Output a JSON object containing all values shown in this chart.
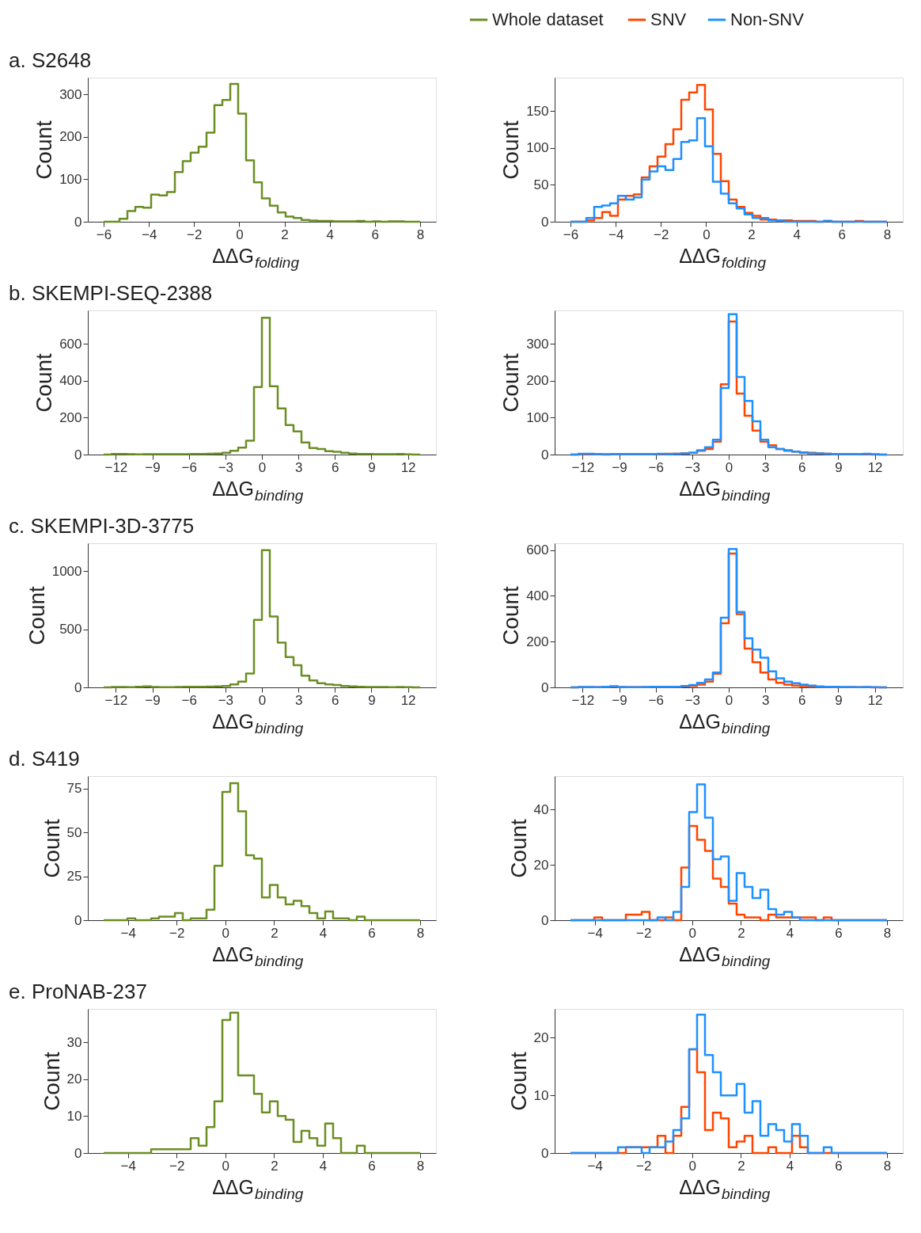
{
  "chart_data": [
    {
      "type": "histogram",
      "title": "a. S2648",
      "xlabel": "ΔΔG$_{folding}$",
      "ylabel": "Count",
      "xlim": [
        -6.7,
        8.7
      ],
      "xticks": [
        -6,
        -4,
        -2,
        0,
        2,
        4,
        6,
        8
      ],
      "ylim": [
        0,
        340
      ],
      "yticks": [
        0,
        100,
        200,
        300
      ],
      "bins": [
        -6,
        -5.65,
        -5.3,
        -4.95,
        -4.6,
        -4.25,
        -3.9,
        -3.55,
        -3.2,
        -2.85,
        -2.5,
        -2.15,
        -1.8,
        -1.45,
        -1.1,
        -0.75,
        -0.4,
        -0.05,
        0.3,
        0.65,
        1,
        1.35,
        1.7,
        2.05,
        2.4,
        2.75,
        3.1,
        3.45,
        3.8,
        4.15,
        4.5,
        4.85,
        5.2,
        5.55,
        5.9,
        6.25,
        6.6,
        6.95,
        7.3,
        7.65,
        8
      ],
      "series": [
        {
          "name": "Whole dataset",
          "color": "#6b8e23",
          "values": [
            0,
            0,
            7,
            25,
            35,
            33,
            64,
            62,
            70,
            117,
            143,
            163,
            177,
            210,
            275,
            287,
            325,
            255,
            145,
            93,
            55,
            38,
            22,
            12,
            9,
            4,
            3,
            2,
            2,
            1,
            1,
            1,
            2,
            0,
            1,
            0,
            1,
            1,
            0,
            0
          ]
        }
      ],
      "legend": "top right"
    },
    {
      "type": "histogram",
      "xlabel": "ΔΔG$_{folding}$",
      "ylabel": "Count",
      "xlim": [
        -6.7,
        8.7
      ],
      "xticks": [
        -6,
        -4,
        -2,
        0,
        2,
        4,
        6,
        8
      ],
      "ylim": [
        0,
        195
      ],
      "yticks": [
        0,
        50,
        100,
        150
      ],
      "bins": [
        -6,
        -5.65,
        -5.3,
        -4.95,
        -4.6,
        -4.25,
        -3.9,
        -3.55,
        -3.2,
        -2.85,
        -2.5,
        -2.15,
        -1.8,
        -1.45,
        -1.1,
        -0.75,
        -0.4,
        -0.05,
        0.3,
        0.65,
        1,
        1.35,
        1.7,
        2.05,
        2.4,
        2.75,
        3.1,
        3.45,
        3.8,
        4.15,
        4.5,
        4.85,
        5.2,
        5.55,
        5.9,
        6.25,
        6.6,
        6.95,
        7.3,
        7.65,
        8
      ],
      "series": [
        {
          "name": "SNV",
          "color": "#ff4500",
          "values": [
            0,
            0,
            2,
            5,
            13,
            8,
            30,
            35,
            37,
            60,
            75,
            88,
            105,
            125,
            165,
            175,
            185,
            152,
            92,
            55,
            30,
            20,
            12,
            8,
            3,
            3,
            2,
            2,
            1,
            1,
            1,
            0,
            1,
            0,
            0,
            0,
            1,
            0,
            0,
            0
          ]
        },
        {
          "name": "Non-SNV",
          "color": "#1e90ff",
          "values": [
            0,
            0,
            5,
            20,
            22,
            25,
            35,
            30,
            33,
            57,
            68,
            75,
            70,
            85,
            108,
            110,
            140,
            102,
            54,
            38,
            25,
            18,
            10,
            5,
            5,
            2,
            1,
            0,
            0,
            0,
            0,
            0,
            1,
            0,
            0,
            0,
            0,
            0,
            0,
            0
          ]
        }
      ],
      "legend": "top right"
    },
    {
      "type": "histogram",
      "title": "b. SKEMPI-SEQ-2388",
      "xlabel": "ΔΔG$_{binding}$",
      "ylabel": "Count",
      "xlim": [
        -14.3,
        14.3
      ],
      "xticks": [
        -12,
        -9,
        -6,
        -3,
        0,
        3,
        6,
        9,
        12
      ],
      "ylim": [
        0,
        780
      ],
      "yticks": [
        0,
        200,
        400,
        600
      ],
      "bins": [
        -13,
        -12.35,
        -11.7,
        -11.05,
        -10.4,
        -9.75,
        -9.1,
        -8.45,
        -7.8,
        -7.15,
        -6.5,
        -5.85,
        -5.2,
        -4.55,
        -3.9,
        -3.25,
        -2.6,
        -1.95,
        -1.3,
        -0.65,
        0,
        0.65,
        1.3,
        1.95,
        2.6,
        3.25,
        3.9,
        4.55,
        5.2,
        5.85,
        6.5,
        7.15,
        7.8,
        8.45,
        9.1,
        9.75,
        10.4,
        11.05,
        11.7,
        12.35,
        13
      ],
      "series": [
        {
          "color": "#6b8e23",
          "values": [
            0,
            3,
            3,
            2,
            1,
            2,
            2,
            2,
            2,
            2,
            2,
            3,
            3,
            4,
            5,
            10,
            20,
            38,
            75,
            365,
            740,
            370,
            250,
            160,
            125,
            65,
            35,
            30,
            18,
            15,
            10,
            5,
            3,
            3,
            2,
            2,
            2,
            3,
            1,
            0
          ]
        }
      ]
    },
    {
      "type": "histogram",
      "xlabel": "ΔΔG$_{binding}$",
      "ylabel": "Count",
      "xlim": [
        -14.3,
        14.3
      ],
      "xticks": [
        -12,
        -9,
        -6,
        -3,
        0,
        3,
        6,
        9,
        12
      ],
      "ylim": [
        0,
        390
      ],
      "yticks": [
        0,
        100,
        200,
        300
      ],
      "bins": [
        -13,
        -12.35,
        -11.7,
        -11.05,
        -10.4,
        -9.75,
        -9.1,
        -8.45,
        -7.8,
        -7.15,
        -6.5,
        -5.85,
        -5.2,
        -4.55,
        -3.9,
        -3.25,
        -2.6,
        -1.95,
        -1.3,
        -0.65,
        0,
        0.65,
        1.3,
        1.95,
        2.6,
        3.25,
        3.9,
        4.55,
        5.2,
        5.85,
        6.5,
        7.15,
        7.8,
        8.45,
        9.1,
        9.75,
        10.4,
        11.05,
        11.7,
        12.35,
        13
      ],
      "series": [
        {
          "color": "#ff4500",
          "values": [
            0,
            1,
            1,
            1,
            0,
            1,
            1,
            1,
            1,
            1,
            1,
            1,
            2,
            2,
            3,
            5,
            10,
            15,
            35,
            190,
            360,
            165,
            105,
            65,
            35,
            25,
            15,
            12,
            8,
            6,
            5,
            3,
            2,
            1,
            1,
            1,
            1,
            1,
            0,
            0
          ]
        },
        {
          "color": "#1e90ff",
          "values": [
            0,
            2,
            2,
            1,
            1,
            1,
            1,
            1,
            1,
            1,
            1,
            2,
            1,
            2,
            3,
            5,
            12,
            20,
            40,
            180,
            380,
            210,
            145,
            90,
            40,
            20,
            15,
            10,
            8,
            5,
            3,
            3,
            2,
            1,
            1,
            1,
            1,
            2,
            1,
            0
          ]
        }
      ]
    },
    {
      "type": "histogram",
      "title": "c. SKEMPI-3D-3775",
      "xlabel": "ΔΔG$_{binding}$",
      "ylabel": "Count",
      "xlim": [
        -14.3,
        14.3
      ],
      "xticks": [
        -12,
        -9,
        -6,
        -3,
        0,
        3,
        6,
        9,
        12
      ],
      "ylim": [
        0,
        1240
      ],
      "yticks": [
        0,
        500,
        1000
      ],
      "bins": [
        -13,
        -12.35,
        -11.7,
        -11.05,
        -10.4,
        -9.75,
        -9.1,
        -8.45,
        -7.8,
        -7.15,
        -6.5,
        -5.85,
        -5.2,
        -4.55,
        -3.9,
        -3.25,
        -2.6,
        -1.95,
        -1.3,
        -0.65,
        0,
        0.65,
        1.3,
        1.95,
        2.6,
        3.25,
        3.9,
        4.55,
        5.2,
        5.85,
        6.5,
        7.15,
        7.8,
        8.45,
        9.1,
        9.75,
        10.4,
        11.05,
        11.7,
        12.35,
        13
      ],
      "series": [
        {
          "color": "#6b8e23",
          "values": [
            0,
            3,
            3,
            2,
            5,
            8,
            3,
            2,
            2,
            3,
            5,
            5,
            5,
            6,
            8,
            12,
            25,
            50,
            120,
            580,
            1180,
            610,
            385,
            260,
            190,
            100,
            60,
            35,
            25,
            20,
            12,
            8,
            5,
            4,
            3,
            3,
            2,
            3,
            1,
            0
          ]
        }
      ]
    },
    {
      "type": "histogram",
      "xlabel": "ΔΔG$_{binding}$",
      "ylabel": "Count",
      "xlim": [
        -14.3,
        14.3
      ],
      "xticks": [
        -12,
        -9,
        -6,
        -3,
        0,
        3,
        6,
        9,
        12
      ],
      "ylim": [
        0,
        630
      ],
      "yticks": [
        0,
        200,
        400,
        600
      ],
      "bins": [
        -13,
        -12.35,
        -11.7,
        -11.05,
        -10.4,
        -9.75,
        -9.1,
        -8.45,
        -7.8,
        -7.15,
        -6.5,
        -5.85,
        -5.2,
        -4.55,
        -3.9,
        -3.25,
        -2.6,
        -1.95,
        -1.3,
        -0.65,
        0,
        0.65,
        1.3,
        1.95,
        2.6,
        3.25,
        3.9,
        4.55,
        5.2,
        5.85,
        6.5,
        7.15,
        7.8,
        8.45,
        9.1,
        9.75,
        10.4,
        11.05,
        11.7,
        12.35,
        13
      ],
      "series": [
        {
          "color": "#ff4500",
          "values": [
            0,
            1,
            1,
            1,
            2,
            3,
            1,
            1,
            1,
            1,
            2,
            2,
            2,
            3,
            4,
            6,
            12,
            25,
            60,
            280,
            585,
            320,
            170,
            110,
            65,
            35,
            20,
            12,
            8,
            5,
            3,
            2,
            2,
            1,
            1,
            1,
            1,
            1,
            0,
            0
          ]
        },
        {
          "color": "#1e90ff",
          "values": [
            0,
            2,
            2,
            1,
            3,
            5,
            2,
            1,
            1,
            2,
            3,
            3,
            3,
            3,
            6,
            10,
            20,
            35,
            65,
            305,
            605,
            330,
            215,
            165,
            130,
            70,
            40,
            25,
            18,
            12,
            8,
            4,
            3,
            3,
            2,
            2,
            1,
            2,
            1,
            0
          ]
        }
      ]
    },
    {
      "type": "histogram",
      "title": "d. S419",
      "xlabel": "ΔΔG$_{binding}$",
      "ylabel": "Count",
      "xlim": [
        -5.65,
        8.65
      ],
      "xticks": [
        -4,
        -2,
        0,
        2,
        4,
        6,
        8
      ],
      "ylim": [
        0,
        82
      ],
      "yticks": [
        0,
        25,
        50,
        75
      ],
      "bins": [
        -5,
        -4.675,
        -4.35,
        -4.025,
        -3.7,
        -3.375,
        -3.05,
        -2.725,
        -2.4,
        -2.075,
        -1.75,
        -1.425,
        -1.1,
        -0.775,
        -0.45,
        -0.125,
        0.2,
        0.525,
        0.85,
        1.175,
        1.5,
        1.825,
        2.15,
        2.475,
        2.8,
        3.125,
        3.45,
        3.775,
        4.1,
        4.425,
        4.75,
        5.075,
        5.4,
        5.725,
        6.05,
        6.375,
        6.7,
        7.025,
        7.35,
        7.675,
        8
      ],
      "series": [
        {
          "color": "#6b8e23",
          "values": [
            0,
            0,
            0,
            1,
            0,
            0,
            1,
            2,
            2,
            4,
            0,
            1,
            1,
            6,
            31,
            73,
            78,
            62,
            37,
            35,
            13,
            20,
            13,
            9,
            11,
            8,
            4,
            1,
            5,
            1,
            1,
            0,
            2,
            0,
            0,
            0,
            0,
            0,
            0,
            0
          ]
        }
      ]
    },
    {
      "type": "histogram",
      "xlabel": "ΔΔG$_{binding}$",
      "ylabel": "Count",
      "xlim": [
        -5.65,
        8.65
      ],
      "xticks": [
        -4,
        -2,
        0,
        2,
        4,
        6,
        8
      ],
      "ylim": [
        0,
        52
      ],
      "yticks": [
        0,
        20,
        40
      ],
      "bins": [
        -5,
        -4.675,
        -4.35,
        -4.025,
        -3.7,
        -3.375,
        -3.05,
        -2.725,
        -2.4,
        -2.075,
        -1.75,
        -1.425,
        -1.1,
        -0.775,
        -0.45,
        -0.125,
        0.2,
        0.525,
        0.85,
        1.175,
        1.5,
        1.825,
        2.15,
        2.475,
        2.8,
        3.125,
        3.45,
        3.775,
        4.1,
        4.425,
        4.75,
        5.075,
        5.4,
        5.725,
        6.05,
        6.375,
        6.7,
        7.025,
        7.35,
        7.675,
        8
      ],
      "series": [
        {
          "color": "#ff4500",
          "values": [
            0,
            0,
            0,
            1,
            0,
            0,
            0,
            2,
            2,
            3,
            0,
            0,
            1,
            0,
            19,
            34,
            29,
            25,
            15,
            12,
            6,
            2,
            1,
            1,
            0,
            2,
            1,
            1,
            1,
            1,
            1,
            0,
            1,
            0,
            0,
            0,
            0,
            0,
            0,
            0
          ]
        },
        {
          "color": "#1e90ff",
          "values": [
            0,
            0,
            0,
            0,
            0,
            0,
            0,
            0,
            0,
            0,
            0,
            1,
            0,
            3,
            12,
            39,
            49,
            37,
            22,
            23,
            7,
            17,
            12,
            8,
            11,
            4,
            2,
            3,
            1,
            0,
            0,
            0,
            0,
            0,
            0,
            0,
            0,
            0,
            0,
            0
          ]
        }
      ]
    },
    {
      "type": "histogram",
      "title": "e. ProNAB-237",
      "xlabel": "ΔΔG$_{binding}$",
      "ylabel": "Count",
      "xlim": [
        -5.65,
        8.65
      ],
      "xticks": [
        -4,
        -2,
        0,
        2,
        4,
        6,
        8
      ],
      "ylim": [
        0,
        39
      ],
      "yticks": [
        0,
        10,
        20,
        30
      ],
      "bins": [
        -5,
        -4.675,
        -4.35,
        -4.025,
        -3.7,
        -3.375,
        -3.05,
        -2.725,
        -2.4,
        -2.075,
        -1.75,
        -1.425,
        -1.1,
        -0.775,
        -0.45,
        -0.125,
        0.2,
        0.525,
        0.85,
        1.175,
        1.5,
        1.825,
        2.15,
        2.475,
        2.8,
        3.125,
        3.45,
        3.775,
        4.1,
        4.425,
        4.75,
        5.075,
        5.4,
        5.725,
        6.05,
        6.375,
        6.7,
        7.025,
        7.35,
        7.675,
        8
      ],
      "series": [
        {
          "color": "#6b8e23",
          "values": [
            0,
            0,
            0,
            0,
            0,
            0,
            1,
            1,
            1,
            1,
            1,
            4,
            2,
            7,
            14,
            36,
            38,
            21,
            21,
            16,
            11,
            14,
            10,
            9,
            3,
            6,
            4,
            2,
            8,
            4,
            0,
            0,
            2,
            0,
            0,
            0,
            0,
            0,
            0,
            0
          ]
        }
      ]
    },
    {
      "type": "histogram",
      "xlabel": "ΔΔG$_{binding}$",
      "ylabel": "Count",
      "xlim": [
        -5.65,
        8.65
      ],
      "xticks": [
        -4,
        -2,
        0,
        2,
        4,
        6,
        8
      ],
      "ylim": [
        0,
        25
      ],
      "yticks": [
        0,
        10,
        20
      ],
      "bins": [
        -5,
        -4.675,
        -4.35,
        -4.025,
        -3.7,
        -3.375,
        -3.05,
        -2.725,
        -2.4,
        -2.075,
        -1.75,
        -1.425,
        -1.1,
        -0.775,
        -0.45,
        -0.125,
        0.2,
        0.525,
        0.85,
        1.175,
        1.5,
        1.825,
        2.15,
        2.475,
        2.8,
        3.125,
        3.45,
        3.775,
        4.1,
        4.425,
        4.75,
        5.075,
        5.4,
        5.725,
        6.05,
        6.375,
        6.7,
        7.025,
        7.35,
        7.675,
        8
      ],
      "series": [
        {
          "color": "#ff4500",
          "values": [
            0,
            0,
            0,
            0,
            0,
            0,
            0,
            1,
            1,
            1,
            1,
            3,
            0,
            3,
            8,
            18,
            14,
            4,
            7,
            6,
            1,
            2,
            3,
            0,
            0,
            1,
            0,
            0,
            3,
            1,
            0,
            0,
            0,
            0,
            0,
            0,
            0,
            0,
            0,
            0
          ]
        },
        {
          "color": "#1e90ff",
          "values": [
            0,
            0,
            0,
            0,
            0,
            0,
            1,
            1,
            1,
            0,
            1,
            1,
            2,
            4,
            6,
            18,
            24,
            17,
            14,
            10,
            10,
            12,
            7,
            9,
            3,
            5,
            4,
            2,
            5,
            3,
            0,
            0,
            1,
            0,
            0,
            0,
            0,
            0,
            0,
            0
          ]
        }
      ]
    }
  ]
}
